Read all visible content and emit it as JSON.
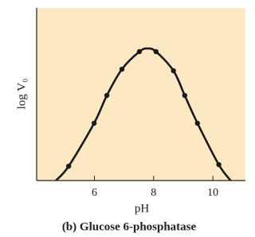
{
  "chart_data": {
    "type": "line",
    "title": "(b) Glucose 6-phosphatase",
    "x_label": "pH",
    "y_label": "log V₀",
    "xlim": [
      4.05,
      11.1
    ],
    "xticks": [
      6,
      8,
      10
    ],
    "ylim": [
      0,
      10
    ],
    "background": "#fce9c4",
    "series": [
      {
        "color": "#1a1a1a",
        "markers": false,
        "smooth": true,
        "x": [
          4.7,
          5.13,
          5.99,
          6.42,
          6.93,
          7.52,
          7.79,
          8.08,
          8.67,
          9.05,
          9.48,
          10.2,
          10.6
        ],
        "values": [
          0,
          0.83,
          3.32,
          4.93,
          6.45,
          7.47,
          7.65,
          7.47,
          6.36,
          4.93,
          3.32,
          0.92,
          0
        ]
      },
      {
        "color": "#1a1a1a",
        "markers": true,
        "smooth": false,
        "connect": false,
        "x": [
          5.13,
          5.99,
          6.42,
          6.93,
          7.52,
          8.08,
          8.67,
          9.05,
          9.48,
          10.2
        ],
        "values": [
          0.83,
          3.32,
          4.93,
          6.45,
          7.47,
          7.47,
          6.36,
          4.93,
          3.32,
          0.92
        ]
      }
    ]
  }
}
